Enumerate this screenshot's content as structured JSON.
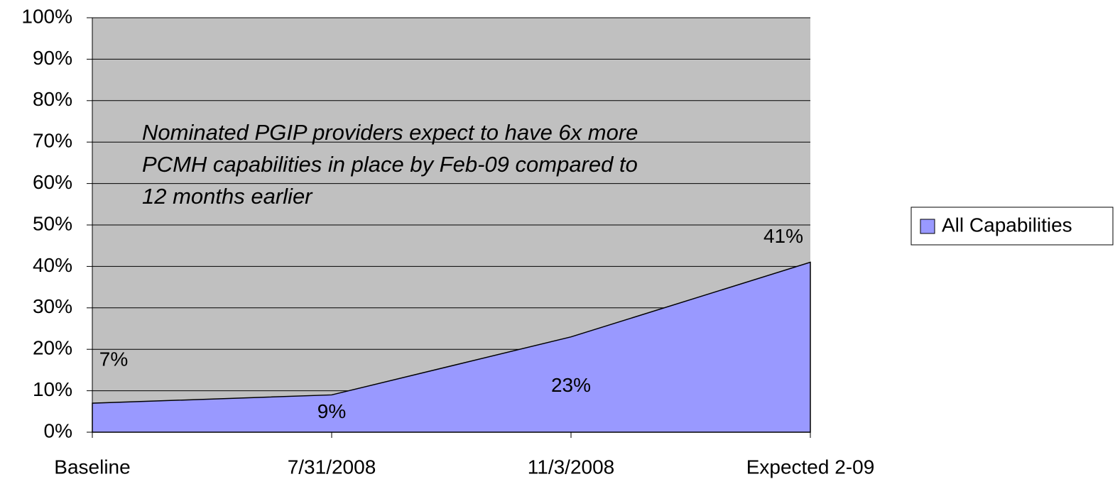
{
  "chart_data": {
    "type": "area",
    "annotation": [
      "Nominated PGIP providers expect to have 6x more",
      "PCMH capabilities in place by Feb-09 compared to",
      "12 months earlier"
    ],
    "categories": [
      "Baseline",
      "7/31/2008",
      "11/3/2008",
      "Expected 2-09"
    ],
    "series": [
      {
        "name": "All Capabilities",
        "color": "#9999ff",
        "values": [
          7,
          9,
          23,
          41
        ],
        "value_labels": [
          "7%",
          "9%",
          "23%",
          "41%"
        ]
      }
    ],
    "ylim": [
      0,
      100
    ],
    "yticks": [
      {
        "value": 0,
        "label": "0%"
      },
      {
        "value": 10,
        "label": "10%"
      },
      {
        "value": 20,
        "label": "20%"
      },
      {
        "value": 30,
        "label": "30%"
      },
      {
        "value": 40,
        "label": "40%"
      },
      {
        "value": 50,
        "label": "50%"
      },
      {
        "value": 60,
        "label": "60%"
      },
      {
        "value": 70,
        "label": "70%"
      },
      {
        "value": 80,
        "label": "80%"
      },
      {
        "value": 90,
        "label": "90%"
      },
      {
        "value": 100,
        "label": "100%"
      }
    ],
    "grid": true,
    "plot_background": "#c0c0c0",
    "legend": "right"
  }
}
